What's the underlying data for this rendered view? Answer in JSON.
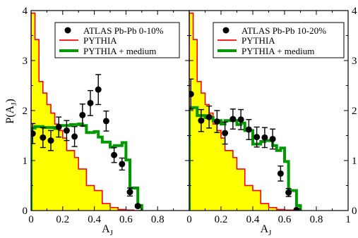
{
  "chart_data": [
    {
      "type": "line",
      "panel": "left",
      "xlabel": "A_J",
      "ylabel": "P(A_J)",
      "xlim": [
        0,
        1
      ],
      "ylim": [
        0,
        4
      ],
      "x_ticks": [
        "0",
        "0.2",
        "0.4",
        "0.6",
        "0.8"
      ],
      "y_ticks": [
        "0",
        "1",
        "2",
        "3",
        "4"
      ],
      "legend": {
        "placement": "top-right",
        "entries": [
          "ATLAS Pb-Pb 0-10%",
          "PYTHIA",
          "PYTHIA + medium"
        ]
      },
      "series": [
        {
          "name": "PYTHIA",
          "style": "step-filled",
          "color": "#ff0000",
          "fill": "#ffff00",
          "bin_edges": [
            0,
            0.025,
            0.05,
            0.075,
            0.1,
            0.125,
            0.15,
            0.175,
            0.2,
            0.225,
            0.25,
            0.275,
            0.3,
            0.325,
            0.35,
            0.375,
            0.4,
            0.425,
            0.45,
            0.475,
            0.5,
            0.525,
            0.55,
            0.575,
            0.6,
            0.625,
            0.65,
            0.675,
            0.7
          ],
          "values": [
            3.95,
            3.42,
            2.58,
            2.35,
            2.12,
            1.95,
            1.73,
            1.6,
            1.45,
            1.2,
            1.2,
            1.06,
            0.83,
            0.83,
            0.5,
            0.5,
            0.4,
            0.4,
            0.14,
            0.14,
            0.06,
            0.06,
            0.02,
            0.02,
            0.01,
            0.01,
            0,
            0
          ]
        },
        {
          "name": "PYTHIA + medium",
          "style": "step",
          "color": "#009900",
          "bin_edges": [
            0,
            0.025,
            0.05,
            0.075,
            0.1,
            0.125,
            0.15,
            0.175,
            0.2,
            0.225,
            0.25,
            0.275,
            0.3,
            0.325,
            0.35,
            0.375,
            0.4,
            0.425,
            0.45,
            0.475,
            0.5,
            0.525,
            0.55,
            0.575,
            0.6,
            0.625,
            0.65,
            0.675,
            0.7
          ],
          "values": [
            1.65,
            1.68,
            1.68,
            1.66,
            1.66,
            1.66,
            1.64,
            1.7,
            1.7,
            1.7,
            1.72,
            1.72,
            1.73,
            1.7,
            1.56,
            1.56,
            1.58,
            1.47,
            1.37,
            1.37,
            1.27,
            1.3,
            1.3,
            1.36,
            1.01,
            0.45,
            0.45,
            0.1
          ]
        },
        {
          "name": "ATLAS Pb-Pb 0-10%",
          "style": "points",
          "color": "#000000",
          "x": [
            0.01,
            0.075,
            0.125,
            0.175,
            0.225,
            0.275,
            0.325,
            0.375,
            0.425,
            0.475,
            0.525,
            0.575,
            0.625,
            0.675
          ],
          "y": [
            1.54,
            1.46,
            1.4,
            1.67,
            1.6,
            1.48,
            1.91,
            2.15,
            2.42,
            1.79,
            1.11,
            0.93,
            0.37,
            0.09
          ],
          "yerr": [
            0.2,
            0.2,
            0.2,
            0.2,
            0.2,
            0.2,
            0.22,
            0.25,
            0.3,
            0.2,
            0.15,
            0.12,
            0.08,
            0.03
          ]
        }
      ]
    },
    {
      "type": "line",
      "panel": "right",
      "xlabel": "A_J",
      "ylabel": "",
      "xlim": [
        0,
        1
      ],
      "ylim": [
        0,
        4
      ],
      "x_ticks": [
        "0",
        "0.2",
        "0.4",
        "0.6",
        "0.8",
        "1"
      ],
      "y_ticks": [
        "0",
        "1",
        "2",
        "3",
        "4"
      ],
      "legend": {
        "placement": "top-right",
        "entries": [
          "ATLAS Pb-Pb 10-20%",
          "PYTHIA",
          "PYTHIA + medium"
        ]
      },
      "series": [
        {
          "name": "PYTHIA",
          "style": "step-filled",
          "color": "#ff0000",
          "fill": "#ffff00",
          "bin_edges": [
            0,
            0.025,
            0.05,
            0.075,
            0.1,
            0.125,
            0.15,
            0.175,
            0.2,
            0.225,
            0.25,
            0.275,
            0.3,
            0.325,
            0.35,
            0.375,
            0.4,
            0.425,
            0.45,
            0.475,
            0.5,
            0.525,
            0.55,
            0.575,
            0.6,
            0.625,
            0.65,
            0.675,
            0.7
          ],
          "values": [
            3.95,
            3.42,
            2.58,
            2.35,
            2.12,
            1.95,
            1.73,
            1.6,
            1.45,
            1.2,
            1.2,
            1.06,
            0.83,
            0.83,
            0.5,
            0.5,
            0.4,
            0.4,
            0.14,
            0.14,
            0.06,
            0.06,
            0.02,
            0.02,
            0.01,
            0.01,
            0,
            0
          ]
        },
        {
          "name": "PYTHIA + medium",
          "style": "step",
          "color": "#009900",
          "bin_edges": [
            0,
            0.025,
            0.05,
            0.075,
            0.1,
            0.125,
            0.15,
            0.175,
            0.2,
            0.225,
            0.25,
            0.275,
            0.3,
            0.325,
            0.35,
            0.375,
            0.4,
            0.425,
            0.45,
            0.475,
            0.5,
            0.525,
            0.55,
            0.575,
            0.6,
            0.625,
            0.65,
            0.675,
            0.7
          ],
          "values": [
            2.06,
            2.06,
            1.9,
            1.9,
            1.86,
            1.86,
            1.8,
            1.8,
            1.73,
            1.8,
            1.8,
            1.8,
            1.72,
            1.75,
            1.6,
            1.6,
            1.33,
            1.33,
            1.38,
            1.4,
            1.4,
            1.3,
            1.2,
            1.25,
            0.98,
            0.4,
            0.4,
            0.1
          ]
        },
        {
          "name": "ATLAS Pb-Pb 10-20%",
          "style": "points",
          "color": "#000000",
          "x": [
            0.01,
            0.075,
            0.125,
            0.175,
            0.225,
            0.275,
            0.325,
            0.375,
            0.425,
            0.475,
            0.525,
            0.575,
            0.625,
            0.675
          ],
          "y": [
            2.33,
            1.8,
            1.87,
            1.78,
            1.55,
            1.83,
            1.82,
            1.62,
            1.47,
            1.46,
            1.43,
            0.74,
            0.36,
            0.01
          ],
          "yerr": [
            0.3,
            0.22,
            0.22,
            0.22,
            0.22,
            0.2,
            0.2,
            0.2,
            0.2,
            0.2,
            0.2,
            0.15,
            0.08,
            0.02
          ]
        }
      ]
    }
  ]
}
